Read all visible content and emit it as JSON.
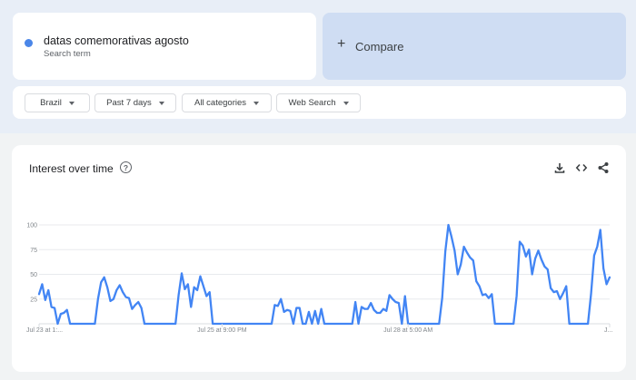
{
  "search_term": {
    "name": "datas comemorativas agosto",
    "subtitle": "Search term",
    "dot_color": "#4a86e8"
  },
  "compare": {
    "label": "Compare",
    "icon": "plus-icon"
  },
  "filters": [
    {
      "label": "Brazil"
    },
    {
      "label": "Past 7 days"
    },
    {
      "label": "All categories"
    },
    {
      "label": "Web Search"
    }
  ],
  "chart_card": {
    "title": "Interest over time",
    "help_icon": "?",
    "tools": [
      "download-icon",
      "embed-icon",
      "share-icon"
    ]
  },
  "chart_data": {
    "type": "line",
    "title": "Interest over time",
    "ylim": [
      0,
      100
    ],
    "yticks": [
      25,
      50,
      75,
      100
    ],
    "grid": true,
    "x_tick_labels": [
      "Jul 23 at 1:...",
      "Jul 25 at 9:00 PM",
      "Jul 28 at 5:00 AM",
      "J..."
    ],
    "series": [
      {
        "color": "#4285f4",
        "values": [
          30,
          40,
          24,
          34,
          17,
          16,
          0,
          10,
          11,
          14,
          0,
          0,
          0,
          0,
          0,
          0,
          0,
          0,
          0,
          25,
          42,
          47,
          37,
          23,
          25,
          34,
          39,
          32,
          27,
          26,
          15,
          19,
          22,
          16,
          0,
          0,
          0,
          0,
          0,
          0,
          0,
          0,
          0,
          0,
          0,
          29,
          51,
          35,
          40,
          17,
          37,
          34,
          48,
          38,
          28,
          32,
          0,
          0,
          0,
          0,
          0,
          0,
          0,
          0,
          0,
          0,
          0,
          0,
          0,
          0,
          0,
          0,
          0,
          0,
          0,
          0,
          19,
          18,
          25,
          12,
          14,
          13,
          0,
          16,
          16,
          0,
          0,
          12,
          0,
          13,
          0,
          15,
          0,
          0,
          0,
          0,
          0,
          0,
          0,
          0,
          0,
          0,
          22,
          0,
          17,
          15,
          15,
          21,
          14,
          11,
          11,
          15,
          13,
          29,
          25,
          22,
          21,
          0,
          28,
          0,
          0,
          0,
          0,
          0,
          0,
          0,
          0,
          0,
          0,
          0,
          26,
          73,
          100,
          88,
          74,
          50,
          60,
          78,
          72,
          67,
          64,
          43,
          38,
          29,
          30,
          26,
          30,
          0,
          0,
          0,
          0,
          0,
          0,
          0,
          28,
          83,
          79,
          68,
          75,
          50,
          66,
          74,
          65,
          58,
          55,
          36,
          32,
          33,
          25,
          31,
          38,
          0,
          0,
          0,
          0,
          0,
          0,
          0,
          30,
          69,
          78,
          95,
          56,
          40,
          47
        ]
      }
    ]
  }
}
